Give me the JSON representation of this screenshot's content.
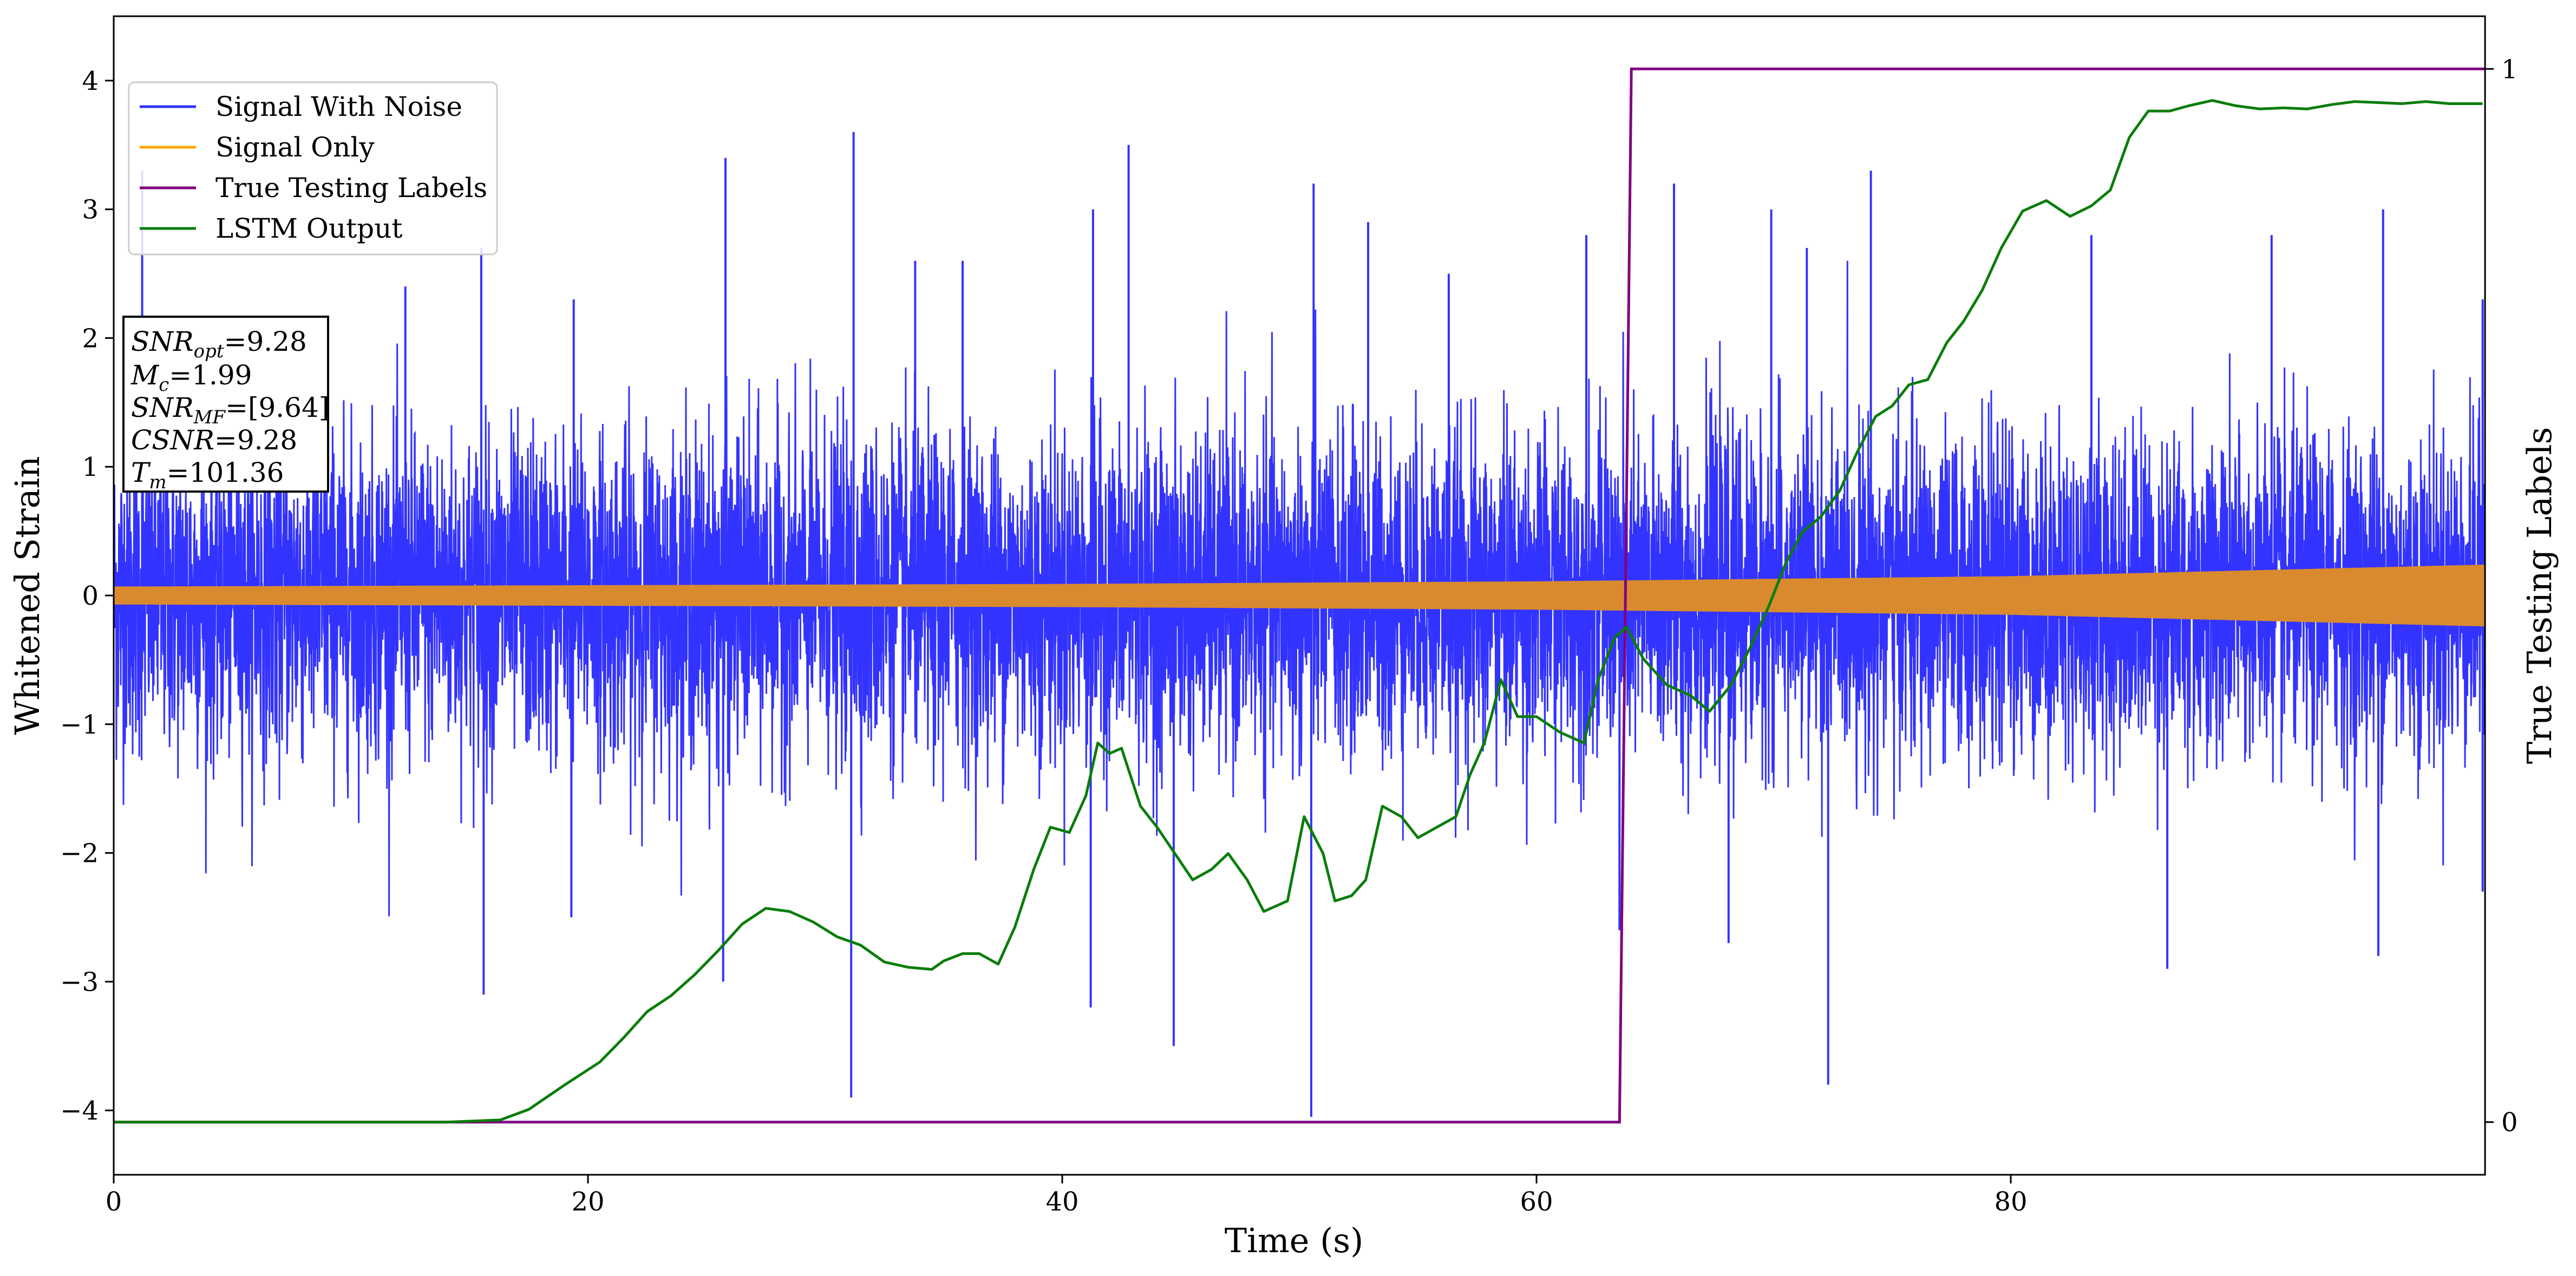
{
  "chart_data": {
    "type": "line",
    "xlabel": "Time (s)",
    "ylabel": "Whitened Strain",
    "y2label": "True Testing Labels",
    "xlim": [
      0,
      100
    ],
    "ylim": [
      -4.5,
      4.5
    ],
    "y2lim": [
      -0.05,
      1.05
    ],
    "grid": false,
    "legend_position": "top-left",
    "x_ticks": [
      0,
      20,
      40,
      60,
      80
    ],
    "x_tick_labels": [
      "0",
      "20",
      "40",
      "60",
      "80"
    ],
    "y_ticks": [
      -4,
      -3,
      -2,
      -1,
      0,
      1,
      2,
      3,
      4
    ],
    "y_tick_labels": [
      "−4",
      "−3",
      "−2",
      "−1",
      "0",
      "1",
      "2",
      "3",
      "4"
    ],
    "y2_ticks": [
      0,
      1
    ],
    "y2_tick_labels": [
      "0",
      "1"
    ],
    "colors": {
      "noise": "#3333ff",
      "signal": "#d98a2e",
      "labels": "#800080",
      "lstm": "#0a7d0a",
      "signal_legend": "#ffa500"
    },
    "legend": [
      {
        "key": "noise",
        "label": "Signal With Noise"
      },
      {
        "key": "signal_legend",
        "label": "Signal Only"
      },
      {
        "key": "labels",
        "label": "True Testing Labels"
      },
      {
        "key": "lstm",
        "label": "LSTM Output"
      }
    ],
    "info_box": {
      "snr_opt": "9.28",
      "mc": "1.99",
      "snr_mf": "[9.64]",
      "csnr": "9.28",
      "tm": "101.36"
    },
    "series": [
      {
        "key": "noise",
        "name": "Signal With Noise",
        "values_note": "",
        "spikes": [
          [
            1.2,
            3.3
          ],
          [
            8.9,
            2.1
          ],
          [
            12.3,
            2.4
          ],
          [
            15.5,
            2.7
          ],
          [
            15.6,
            -3.1
          ],
          [
            19.4,
            2.3
          ],
          [
            19.3,
            -2.5
          ],
          [
            25.8,
            3.4
          ],
          [
            25.7,
            -3.0
          ],
          [
            31.2,
            3.6
          ],
          [
            31.1,
            -3.9
          ],
          [
            33.8,
            2.6
          ],
          [
            35.8,
            2.6
          ],
          [
            41.3,
            3.0
          ],
          [
            41.2,
            -3.2
          ],
          [
            42.8,
            3.5
          ],
          [
            44.7,
            -3.5
          ],
          [
            50.6,
            3.2
          ],
          [
            50.5,
            -4.05
          ],
          [
            52.9,
            2.9
          ],
          [
            56.3,
            2.5
          ],
          [
            62.1,
            2.8
          ],
          [
            63.5,
            -2.6
          ],
          [
            65.8,
            3.2
          ],
          [
            68.1,
            -2.7
          ],
          [
            69.9,
            3.0
          ],
          [
            71.4,
            2.7
          ],
          [
            72.3,
            -3.8
          ],
          [
            74.1,
            3.3
          ],
          [
            83.4,
            2.8
          ],
          [
            86.6,
            -2.9
          ],
          [
            91.0,
            2.8
          ],
          [
            95.7,
            3.0
          ],
          [
            95.5,
            -2.8
          ],
          [
            99.9,
            2.3
          ],
          [
            99.9,
            -2.3
          ]
        ]
      },
      {
        "key": "signal",
        "name": "Signal Only",
        "amplitude": [
          [
            0,
            0.07
          ],
          [
            20,
            0.08
          ],
          [
            40,
            0.09
          ],
          [
            60,
            0.11
          ],
          [
            80,
            0.15
          ],
          [
            100,
            0.24
          ]
        ]
      },
      {
        "key": "labels",
        "name": "True Testing Labels",
        "x": [
          0,
          63.5,
          64.0,
          100
        ],
        "y": [
          0,
          0,
          1,
          1
        ]
      },
      {
        "key": "lstm",
        "name": "LSTM Output",
        "x": [
          0,
          14,
          16.3,
          17.5,
          19,
          20.5,
          21.5,
          22.5,
          23.5,
          24.5,
          25.5,
          26.5,
          27.5,
          28.5,
          29.5,
          30.5,
          31.5,
          32.5,
          33.5,
          34.5,
          35,
          35.8,
          36.5,
          37.3,
          38,
          38.8,
          39.5,
          40.3,
          41,
          41.5,
          42,
          42.5,
          43.3,
          44,
          44.6,
          45.5,
          46.3,
          47,
          47.8,
          48.5,
          49.5,
          50.2,
          51,
          51.5,
          52.2,
          52.8,
          53.5,
          54.3,
          55,
          55.8,
          56.6,
          57.2,
          57.8,
          58.5,
          59.2,
          60,
          61,
          62,
          62.6,
          63.3,
          63.8,
          64.5,
          65.5,
          66.5,
          67.3,
          68.2,
          69,
          69.8,
          70.5,
          71.2,
          72,
          72.8,
          73.5,
          74.3,
          75,
          75.7,
          76.5,
          77.3,
          78,
          78.8,
          79.6,
          80.5,
          81.5,
          82.5,
          83.4,
          84.2,
          85,
          85.8,
          86.7,
          87.5,
          88.5,
          89.5,
          90.5,
          91.5,
          92.5,
          93.5,
          94.5,
          95.5,
          96.5,
          97.5,
          98.5,
          99.9
        ],
        "y": [
          0.0,
          0.0,
          0.002,
          0.012,
          0.035,
          0.057,
          0.08,
          0.105,
          0.12,
          0.14,
          0.163,
          0.188,
          0.203,
          0.2,
          0.19,
          0.176,
          0.168,
          0.152,
          0.147,
          0.145,
          0.153,
          0.16,
          0.16,
          0.15,
          0.185,
          0.24,
          0.28,
          0.275,
          0.31,
          0.36,
          0.35,
          0.355,
          0.3,
          0.28,
          0.26,
          0.23,
          0.24,
          0.255,
          0.23,
          0.2,
          0.21,
          0.29,
          0.255,
          0.21,
          0.215,
          0.23,
          0.3,
          0.29,
          0.27,
          0.28,
          0.29,
          0.33,
          0.36,
          0.42,
          0.385,
          0.385,
          0.37,
          0.36,
          0.42,
          0.46,
          0.47,
          0.44,
          0.415,
          0.405,
          0.39,
          0.415,
          0.45,
          0.49,
          0.53,
          0.56,
          0.575,
          0.6,
          0.635,
          0.67,
          0.68,
          0.7,
          0.705,
          0.74,
          0.76,
          0.79,
          0.83,
          0.865,
          0.875,
          0.86,
          0.87,
          0.885,
          0.935,
          0.96,
          0.96,
          0.965,
          0.97,
          0.965,
          0.962,
          0.963,
          0.962,
          0.966,
          0.969,
          0.968,
          0.967,
          0.969,
          0.967,
          0.967
        ]
      }
    ]
  }
}
